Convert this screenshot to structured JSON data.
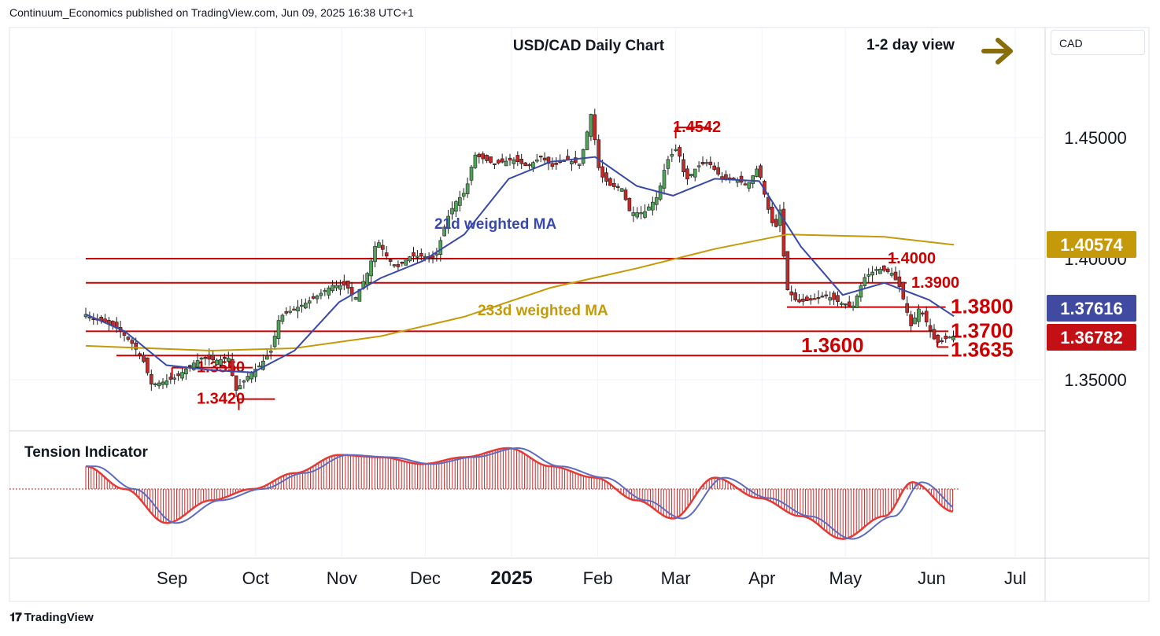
{
  "header": {
    "publisher_line": "Continuum_Economics published on TradingView.com, Jun 09, 2025 16:38 UTC+1"
  },
  "footer": {
    "brand": "TradingView"
  },
  "currency_label": "CAD",
  "colors": {
    "up_candle": "#52a35a",
    "down_candle": "#c62828",
    "level_line": "#cc0000",
    "ma21": "#3949ab",
    "ma233": "#c49a0a",
    "arrow": "#8a6d0b",
    "tag_gold": "#c49a0a",
    "tag_blue": "#3f4aa0",
    "tag_red": "#c40f15"
  },
  "chart_data": {
    "type": "candlestick",
    "title": "USD/CAD Daily Chart",
    "view_label": "1-2 day view",
    "view_icon": "right-arrow-icon",
    "x_ticks": [
      "Sep",
      "Oct",
      "Nov",
      "Dec",
      "2025",
      "Feb",
      "Mar",
      "Apr",
      "May",
      "Jun",
      "Jul"
    ],
    "y_ticks": [
      "1.45000",
      "1.40000",
      "1.35000"
    ],
    "ylim": [
      1.328,
      1.475
    ],
    "price_tags": [
      {
        "value": "1.40574",
        "price": 1.40574,
        "color": "gold"
      },
      {
        "value": "1.37616",
        "price": 1.37616,
        "color": "blue"
      },
      {
        "value": "1.36782",
        "price": 1.36782,
        "color": "red"
      }
    ],
    "levels": [
      {
        "label": "1.4542",
        "price": 1.4542,
        "start": "2025-03-01",
        "end": "2025-03-13"
      },
      {
        "label": "1.4000",
        "price": 1.4,
        "start": "2024-08-01",
        "end": "2025-05-20"
      },
      {
        "label": "1.3900",
        "price": 1.39,
        "start": "2024-08-01",
        "end": "2025-05-23"
      },
      {
        "label": "1.3800",
        "price": 1.38,
        "start": "2025-04-10",
        "end": "2025-06-06"
      },
      {
        "label": "1.3700",
        "price": 1.37,
        "start": "2024-08-01",
        "end": "2025-06-07"
      },
      {
        "label": "1.3635",
        "price": 1.3635,
        "start": "2025-06-03",
        "end": "2025-06-07"
      },
      {
        "label": "1.3600",
        "price": 1.36,
        "start": "2024-08-12",
        "end": "2025-06-07"
      },
      {
        "label": "1.3550",
        "price": 1.355,
        "start": "2024-09-01",
        "end": "2024-09-30"
      },
      {
        "label": "1.3420",
        "price": 1.342,
        "start": "2024-09-25",
        "end": "2024-10-08"
      }
    ],
    "annotations": [
      {
        "text": "21d weighted MA",
        "color": "blue"
      },
      {
        "text": "233d weighted MA",
        "color": "gold"
      },
      {
        "text": "Tension Indicator",
        "color": "dark"
      }
    ],
    "price_path": [
      [
        "2024-08-01",
        1.378
      ],
      [
        "2024-08-05",
        1.375
      ],
      [
        "2024-08-09",
        1.374
      ],
      [
        "2024-08-14",
        1.371
      ],
      [
        "2024-08-19",
        1.365
      ],
      [
        "2024-08-23",
        1.358
      ],
      [
        "2024-08-26",
        1.348
      ],
      [
        "2024-08-30",
        1.349
      ],
      [
        "2024-09-04",
        1.351
      ],
      [
        "2024-09-09",
        1.356
      ],
      [
        "2024-09-13",
        1.359
      ],
      [
        "2024-09-18",
        1.358
      ],
      [
        "2024-09-23",
        1.359
      ],
      [
        "2024-09-25",
        1.345
      ],
      [
        "2024-09-30",
        1.352
      ],
      [
        "2024-10-04",
        1.356
      ],
      [
        "2024-10-08",
        1.362
      ],
      [
        "2024-10-11",
        1.376
      ],
      [
        "2024-10-16",
        1.379
      ],
      [
        "2024-10-21",
        1.382
      ],
      [
        "2024-10-25",
        1.385
      ],
      [
        "2024-10-30",
        1.389
      ],
      [
        "2024-11-04",
        1.389
      ],
      [
        "2024-11-07",
        1.383
      ],
      [
        "2024-11-12",
        1.395
      ],
      [
        "2024-11-15",
        1.408
      ],
      [
        "2024-11-19",
        1.4
      ],
      [
        "2024-11-22",
        1.396
      ],
      [
        "2024-11-27",
        1.401
      ],
      [
        "2024-12-02",
        1.401
      ],
      [
        "2024-12-06",
        1.4
      ],
      [
        "2024-12-10",
        1.416
      ],
      [
        "2024-12-13",
        1.423
      ],
      [
        "2024-12-17",
        1.428
      ],
      [
        "2024-12-20",
        1.443
      ],
      [
        "2024-12-27",
        1.439
      ],
      [
        "2025-01-03",
        1.441
      ],
      [
        "2025-01-08",
        1.438
      ],
      [
        "2025-01-13",
        1.442
      ],
      [
        "2025-01-17",
        1.438
      ],
      [
        "2025-01-22",
        1.441
      ],
      [
        "2025-01-27",
        1.439
      ],
      [
        "2025-01-31",
        1.46
      ],
      [
        "2025-02-03",
        1.435
      ],
      [
        "2025-02-07",
        1.43
      ],
      [
        "2025-02-11",
        1.429
      ],
      [
        "2025-02-14",
        1.419
      ],
      [
        "2025-02-19",
        1.419
      ],
      [
        "2025-02-24",
        1.426
      ],
      [
        "2025-02-27",
        1.44
      ],
      [
        "2025-03-03",
        1.446
      ],
      [
        "2025-03-06",
        1.432
      ],
      [
        "2025-03-10",
        1.438
      ],
      [
        "2025-03-14",
        1.44
      ],
      [
        "2025-03-19",
        1.433
      ],
      [
        "2025-03-24",
        1.433
      ],
      [
        "2025-03-28",
        1.43
      ],
      [
        "2025-04-01",
        1.438
      ],
      [
        "2025-04-04",
        1.423
      ],
      [
        "2025-04-07",
        1.411
      ],
      [
        "2025-04-09",
        1.421
      ],
      [
        "2025-04-11",
        1.388
      ],
      [
        "2025-04-15",
        1.382
      ],
      [
        "2025-04-21",
        1.383
      ],
      [
        "2025-04-25",
        1.385
      ],
      [
        "2025-04-30",
        1.382
      ],
      [
        "2025-05-05",
        1.38
      ],
      [
        "2025-05-09",
        1.392
      ],
      [
        "2025-05-14",
        1.396
      ],
      [
        "2025-05-19",
        1.394
      ],
      [
        "2025-05-22",
        1.388
      ],
      [
        "2025-05-26",
        1.372
      ],
      [
        "2025-05-29",
        1.38
      ],
      [
        "2025-06-02",
        1.37
      ],
      [
        "2025-06-04",
        1.365
      ],
      [
        "2025-06-09",
        1.3678
      ]
    ],
    "ma21_path": [
      [
        "2024-08-01",
        1.377
      ],
      [
        "2024-08-15",
        1.37
      ],
      [
        "2024-08-30",
        1.356
      ],
      [
        "2024-09-15",
        1.354
      ],
      [
        "2024-09-30",
        1.353
      ],
      [
        "2024-10-15",
        1.362
      ],
      [
        "2024-10-31",
        1.382
      ],
      [
        "2024-11-15",
        1.392
      ],
      [
        "2024-11-30",
        1.399
      ],
      [
        "2024-12-15",
        1.41
      ],
      [
        "2024-12-31",
        1.433
      ],
      [
        "2025-01-15",
        1.44
      ],
      [
        "2025-01-31",
        1.442
      ],
      [
        "2025-02-15",
        1.43
      ],
      [
        "2025-02-28",
        1.426
      ],
      [
        "2025-03-15",
        1.433
      ],
      [
        "2025-03-31",
        1.432
      ],
      [
        "2025-04-15",
        1.405
      ],
      [
        "2025-04-30",
        1.385
      ],
      [
        "2025-05-15",
        1.39
      ],
      [
        "2025-05-31",
        1.383
      ],
      [
        "2025-06-09",
        1.3762
      ]
    ],
    "ma233_path": [
      [
        "2024-08-01",
        1.364
      ],
      [
        "2024-09-15",
        1.362
      ],
      [
        "2024-10-15",
        1.363
      ],
      [
        "2024-11-15",
        1.368
      ],
      [
        "2024-12-15",
        1.376
      ],
      [
        "2025-01-15",
        1.388
      ],
      [
        "2025-02-15",
        1.396
      ],
      [
        "2025-03-15",
        1.404
      ],
      [
        "2025-04-10",
        1.41
      ],
      [
        "2025-05-15",
        1.409
      ],
      [
        "2025-06-09",
        1.4057
      ]
    ],
    "tension_indicator": {
      "ylim": [
        -0.26,
        0.12
      ],
      "histogram_path": [
        [
          "2024-08-01",
          0.1
        ],
        [
          "2024-08-15",
          0.0
        ],
        [
          "2024-08-30",
          -0.15
        ],
        [
          "2024-09-15",
          -0.05
        ],
        [
          "2024-09-30",
          0.0
        ],
        [
          "2024-10-15",
          0.07
        ],
        [
          "2024-10-31",
          0.15
        ],
        [
          "2024-11-15",
          0.14
        ],
        [
          "2024-11-30",
          0.11
        ],
        [
          "2024-12-15",
          0.14
        ],
        [
          "2024-12-31",
          0.18
        ],
        [
          "2025-01-15",
          0.1
        ],
        [
          "2025-01-31",
          0.05
        ],
        [
          "2025-02-15",
          -0.05
        ],
        [
          "2025-02-28",
          -0.13
        ],
        [
          "2025-03-15",
          0.05
        ],
        [
          "2025-03-31",
          -0.04
        ],
        [
          "2025-04-15",
          -0.12
        ],
        [
          "2025-04-30",
          -0.22
        ],
        [
          "2025-05-15",
          -0.12
        ],
        [
          "2025-05-25",
          0.03
        ],
        [
          "2025-06-09",
          -0.1
        ]
      ]
    }
  }
}
